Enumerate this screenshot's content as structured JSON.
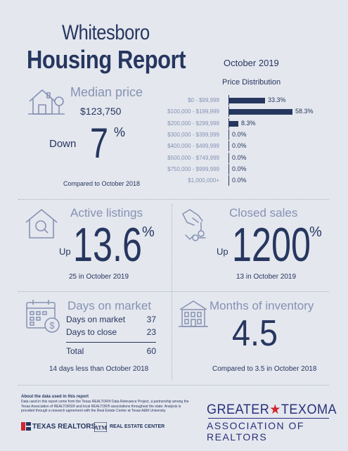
{
  "header": {
    "city": "Whitesboro",
    "title": "Housing Report",
    "month": "October 2019"
  },
  "median": {
    "label": "Median price",
    "value": "$123,750",
    "direction": "Down",
    "change": "7",
    "pct_sign": "%",
    "compare": "Compared to October 2018"
  },
  "distribution": {
    "title": "Price Distribution",
    "rows": [
      {
        "label": "$0 - $99,999",
        "value": "33.3%"
      },
      {
        "label": "$100,000 - $199,999",
        "value": "58.3%"
      },
      {
        "label": "$200,000 - $299,999",
        "value": "8.3%"
      },
      {
        "label": "$300,000 - $399,999",
        "value": "0.0%"
      },
      {
        "label": "$400,000 - $499,999",
        "value": "0.0%"
      },
      {
        "label": "$500,000 - $749,999",
        "value": "0.0%"
      },
      {
        "label": "$750,000 - $999,999",
        "value": "0.0%"
      },
      {
        "label": "$1,000,000+",
        "value": "0.0%"
      }
    ]
  },
  "chart_data": {
    "type": "bar",
    "title": "Price Distribution",
    "categories": [
      "$0 - $99,999",
      "$100,000 - $199,999",
      "$200,000 - $299,999",
      "$300,000 - $399,999",
      "$400,000 - $499,999",
      "$500,000 - $749,999",
      "$750,000 - $999,999",
      "$1,000,000+"
    ],
    "values": [
      33.3,
      58.3,
      8.3,
      0.0,
      0.0,
      0.0,
      0.0,
      0.0
    ],
    "orientation": "horizontal",
    "xlim": [
      0,
      100
    ]
  },
  "active": {
    "label": "Active listings",
    "direction": "Up",
    "change": "13.6",
    "pct_sign": "%",
    "note": "25 in October 2019"
  },
  "closed": {
    "label": "Closed sales",
    "direction": "Up",
    "change": "1200",
    "pct_sign": "%",
    "note": "13 in October 2019"
  },
  "dom": {
    "label": "Days on market",
    "rows": [
      {
        "label": "Days on market",
        "value": "37"
      },
      {
        "label": "Days to close",
        "value": "23"
      }
    ],
    "total_label": "Total",
    "total_value": "60",
    "note": "14 days less than October 2018"
  },
  "moi": {
    "label": "Months of inventory",
    "value": "4.5",
    "note": "Compared to 3.5 in October 2018"
  },
  "footer": {
    "about_title": "About the data used in this report",
    "about_text": "Data used in this report come from the Texas REALTOR® Data Relevance Project, a partnership among the Texas Association of REALTORS® and local REALTOR® associations throughout the state. Analysis is provided through a research agreement with the Real Estate Center at Texas A&M University.",
    "texas_realtors": "TEXAS REALTORS",
    "real_estate_center": "REAL ESTATE CENTER",
    "gtx_top_left": "GREATER",
    "gtx_top_right": "TEXOMA",
    "gtx_bottom": "ASSOCIATION OF REALTORS"
  },
  "colors": {
    "background": "#e4e7ee",
    "navy": "#26365f",
    "steel": "#8592b3",
    "star_red": "#d0262f"
  }
}
